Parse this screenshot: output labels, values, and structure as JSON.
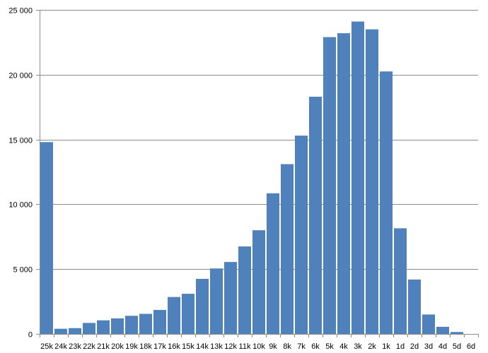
{
  "chart_data": {
    "type": "bar",
    "title": "",
    "xlabel": "",
    "ylabel": "",
    "categories": [
      "25k",
      "24k",
      "23k",
      "22k",
      "21k",
      "20k",
      "19k",
      "18k",
      "17k",
      "16k",
      "15k",
      "14k",
      "13k",
      "12k",
      "11k",
      "10k",
      "9k",
      "8k",
      "7k",
      "6k",
      "5k",
      "4k",
      "3k",
      "2k",
      "1k",
      "1d",
      "2d",
      "3d",
      "4d",
      "5d",
      "6d"
    ],
    "values": [
      14800,
      400,
      450,
      850,
      1050,
      1200,
      1400,
      1550,
      1850,
      2850,
      3100,
      4250,
      5050,
      5550,
      6750,
      8000,
      10850,
      13100,
      15300,
      18300,
      22900,
      23200,
      24100,
      23500,
      20250,
      8150,
      4200,
      1500,
      550,
      150,
      0
    ],
    "ylim": [
      0,
      25000
    ],
    "yticks": [
      {
        "value": 0,
        "label": "0"
      },
      {
        "value": 5000,
        "label": "5 000"
      },
      {
        "value": 10000,
        "label": "10 000"
      },
      {
        "value": 15000,
        "label": "15 000"
      },
      {
        "value": 20000,
        "label": "20 000"
      },
      {
        "value": 25000,
        "label": "25 000"
      }
    ],
    "grid": true,
    "legend": "none",
    "bar_color": "#4f81bd",
    "grid_color": "#8c8c8c",
    "axis_color": "#8c8c8c"
  }
}
